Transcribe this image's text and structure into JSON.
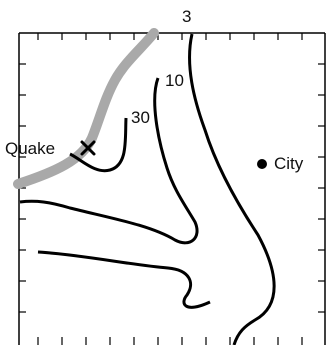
{
  "contour_labels": {
    "c3": "3",
    "c10": "10",
    "c30": "30"
  },
  "markers": {
    "quake_label": "Quake",
    "city_label": "City",
    "quake_symbol": "x-mark-icon",
    "city_symbol": "filled-dot-icon"
  },
  "colors": {
    "contour": "#000000",
    "fault": "#a9a9a9",
    "frame": "#000000"
  }
}
